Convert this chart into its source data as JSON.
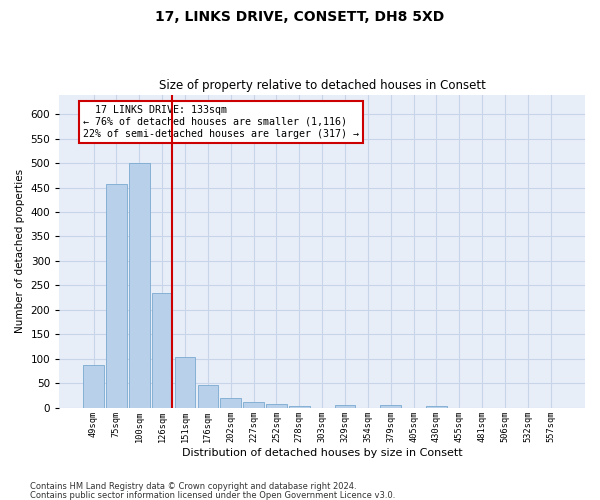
{
  "title": "17, LINKS DRIVE, CONSETT, DH8 5XD",
  "subtitle": "Size of property relative to detached houses in Consett",
  "xlabel": "Distribution of detached houses by size in Consett",
  "ylabel": "Number of detached properties",
  "bar_labels": [
    "49sqm",
    "75sqm",
    "100sqm",
    "126sqm",
    "151sqm",
    "176sqm",
    "202sqm",
    "227sqm",
    "252sqm",
    "278sqm",
    "303sqm",
    "329sqm",
    "354sqm",
    "379sqm",
    "405sqm",
    "430sqm",
    "455sqm",
    "481sqm",
    "506sqm",
    "532sqm",
    "557sqm"
  ],
  "bar_values": [
    88,
    457,
    500,
    234,
    103,
    47,
    19,
    12,
    7,
    3,
    0,
    5,
    0,
    5,
    0,
    4,
    0,
    0,
    0,
    0,
    0
  ],
  "bar_color": "#b8d0ea",
  "bar_edgecolor": "#7aaad0",
  "grid_color": "#c8d4e8",
  "background_color": "#e8eef8",
  "red_line_x": 3.42,
  "red_line_color": "#cc0000",
  "annotation_text": "  17 LINKS DRIVE: 133sqm\n← 76% of detached houses are smaller (1,116)\n22% of semi-detached houses are larger (317) →",
  "annotation_box_color": "#cc0000",
  "ylim": [
    0,
    640
  ],
  "yticks": [
    0,
    50,
    100,
    150,
    200,
    250,
    300,
    350,
    400,
    450,
    500,
    550,
    600
  ],
  "footer_line1": "Contains HM Land Registry data © Crown copyright and database right 2024.",
  "footer_line2": "Contains public sector information licensed under the Open Government Licence v3.0."
}
